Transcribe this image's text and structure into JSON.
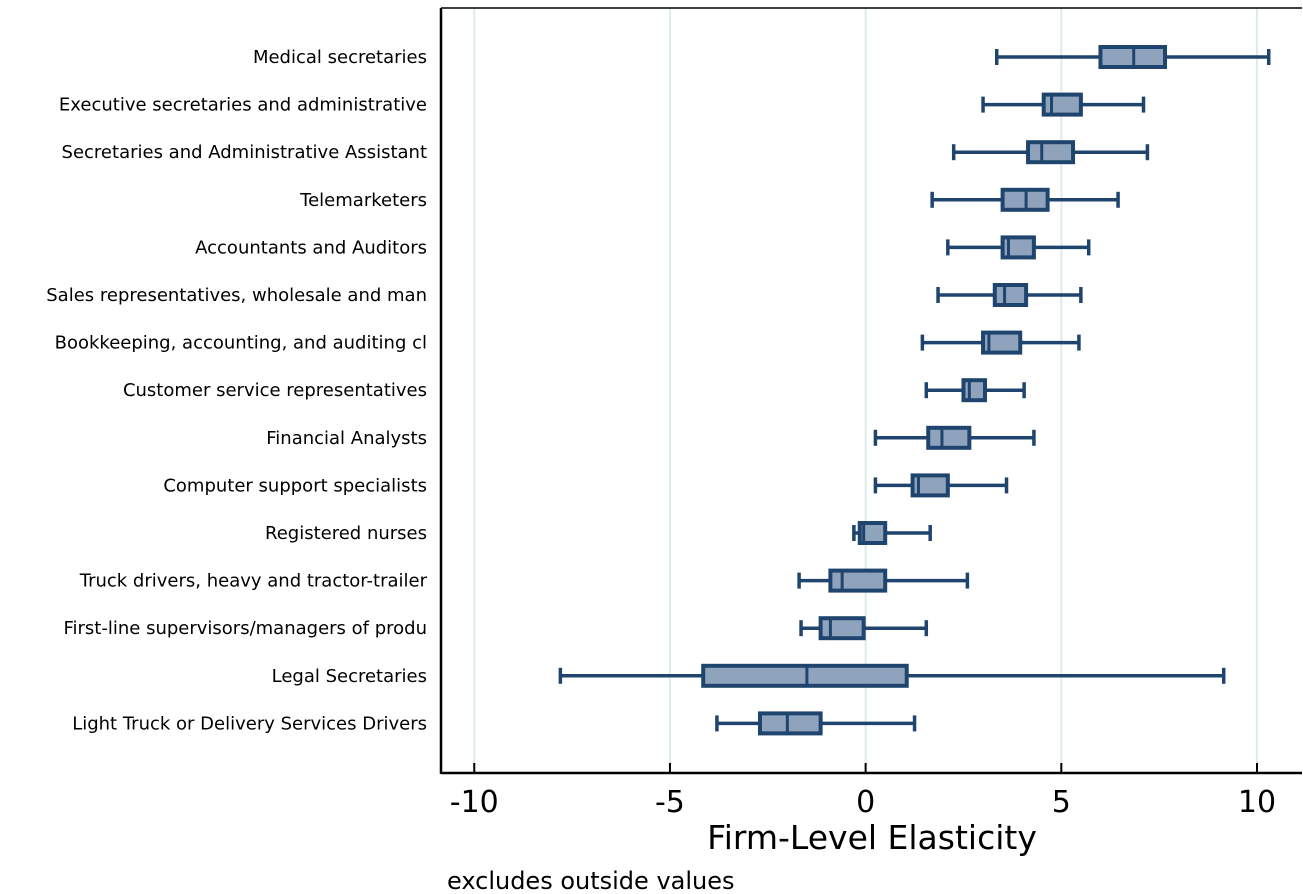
{
  "chart_data": {
    "type": "box",
    "orientation": "horizontal",
    "xlabel": "Firm-Level Elasticity",
    "note": "excludes outside values",
    "xlim": [
      -10.85,
      11.15
    ],
    "xticks": [
      -10,
      -5,
      0,
      5,
      10
    ],
    "xtick_labels": [
      "-10",
      "-5",
      "0",
      "5",
      "10"
    ],
    "grid": "vertical",
    "colors": {
      "fill": "#8fa3bd",
      "stroke": "#1f456e",
      "grid": "#deecec",
      "axis": "#000000"
    },
    "categories": [
      "Medical secretaries",
      "Executive secretaries and administrative",
      "Secretaries and Administrative Assistant",
      "Telemarketers",
      "Accountants and Auditors",
      "Sales representatives, wholesale and man",
      "Bookkeeping, accounting, and auditing cl",
      "Customer service representatives",
      "Financial Analysts",
      "Computer support specialists",
      "Registered nurses",
      "Truck drivers, heavy and tractor-trailer",
      "First-line supervisors/managers of produ",
      "Legal Secretaries",
      "Light Truck or Delivery Services Drivers"
    ],
    "boxes": [
      {
        "whisker_low": 3.35,
        "q1": 6.0,
        "median": 6.85,
        "q3": 7.65,
        "whisker_high": 10.3
      },
      {
        "whisker_low": 3.0,
        "q1": 4.55,
        "median": 4.75,
        "q3": 5.5,
        "whisker_high": 7.1
      },
      {
        "whisker_low": 2.25,
        "q1": 4.15,
        "median": 4.5,
        "q3": 5.3,
        "whisker_high": 7.2
      },
      {
        "whisker_low": 1.7,
        "q1": 3.5,
        "median": 4.1,
        "q3": 4.65,
        "whisker_high": 6.45
      },
      {
        "whisker_low": 2.1,
        "q1": 3.5,
        "median": 3.65,
        "q3": 4.3,
        "whisker_high": 5.7
      },
      {
        "whisker_low": 1.85,
        "q1": 3.3,
        "median": 3.55,
        "q3": 4.1,
        "whisker_high": 5.5
      },
      {
        "whisker_low": 1.45,
        "q1": 3.0,
        "median": 3.15,
        "q3": 3.95,
        "whisker_high": 5.45
      },
      {
        "whisker_low": 1.55,
        "q1": 2.5,
        "median": 2.65,
        "q3": 3.05,
        "whisker_high": 4.05
      },
      {
        "whisker_low": 0.25,
        "q1": 1.6,
        "median": 1.95,
        "q3": 2.65,
        "whisker_high": 4.3
      },
      {
        "whisker_low": 0.25,
        "q1": 1.2,
        "median": 1.35,
        "q3": 2.1,
        "whisker_high": 3.6
      },
      {
        "whisker_low": -0.3,
        "q1": -0.15,
        "median": -0.05,
        "q3": 0.5,
        "whisker_high": 1.65
      },
      {
        "whisker_low": -1.7,
        "q1": -0.9,
        "median": -0.6,
        "q3": 0.5,
        "whisker_high": 2.6
      },
      {
        "whisker_low": -1.65,
        "q1": -1.15,
        "median": -0.9,
        "q3": -0.05,
        "whisker_high": 1.55
      },
      {
        "whisker_low": -7.8,
        "q1": -4.15,
        "median": -1.5,
        "q3": 1.05,
        "whisker_high": 9.15
      },
      {
        "whisker_low": -3.8,
        "q1": -2.7,
        "median": -2.0,
        "q3": -1.15,
        "whisker_high": 1.25
      }
    ]
  }
}
